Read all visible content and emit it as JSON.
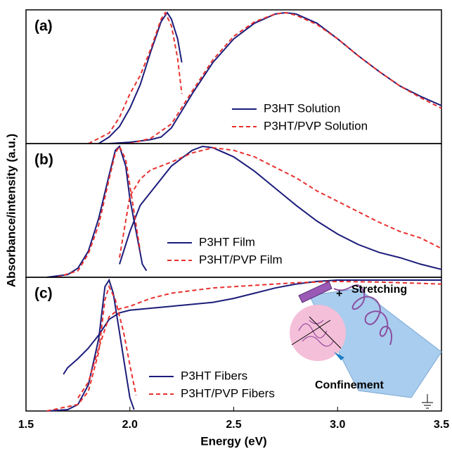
{
  "chart_data": [
    {
      "type": "line",
      "title": "(a)",
      "xlim": [
        1.5,
        3.5
      ],
      "ylim": [
        0,
        1
      ],
      "legend": "lower right",
      "series": [
        {
          "name": "P3HT Solution",
          "color": "#1c1c7a",
          "style": "solid",
          "x": [
            1.85,
            1.9,
            1.95,
            2.0,
            2.05,
            2.1,
            2.15,
            2.18,
            2.2,
            2.23,
            2.25,
            null,
            1.9,
            2.0,
            2.1,
            2.15,
            2.2,
            2.3,
            2.4,
            2.5,
            2.6,
            2.7,
            2.75,
            2.8,
            2.9,
            3.0,
            3.1,
            3.2,
            3.3,
            3.4,
            3.5
          ],
          "values": [
            0,
            0.05,
            0.13,
            0.27,
            0.45,
            0.7,
            0.93,
            1.0,
            0.95,
            0.8,
            0.62,
            null,
            0,
            0.01,
            0.03,
            0.05,
            0.12,
            0.38,
            0.62,
            0.8,
            0.92,
            0.99,
            1.0,
            0.99,
            0.92,
            0.8,
            0.67,
            0.55,
            0.44,
            0.36,
            0.29
          ]
        },
        {
          "name": "P3HT/PVP Solution",
          "color": "#e8312f",
          "style": "dashed",
          "x": [
            1.8,
            1.9,
            1.95,
            2.0,
            2.05,
            2.1,
            2.15,
            2.17,
            2.2,
            2.23,
            2.25,
            null,
            2.0,
            2.1,
            2.2,
            2.3,
            2.4,
            2.5,
            2.6,
            2.7,
            2.75,
            2.8,
            2.9,
            3.0,
            3.1,
            3.2,
            3.3,
            3.4,
            3.5
          ],
          "values": [
            0,
            0.08,
            0.2,
            0.38,
            0.52,
            0.72,
            0.95,
            1.0,
            0.9,
            0.65,
            0.38,
            null,
            0,
            0.04,
            0.15,
            0.4,
            0.64,
            0.82,
            0.93,
            0.99,
            1.0,
            0.98,
            0.91,
            0.8,
            0.67,
            0.55,
            0.44,
            0.35,
            0.27
          ]
        }
      ]
    },
    {
      "type": "line",
      "title": "(b)",
      "xlim": [
        1.5,
        3.5
      ],
      "ylim": [
        0,
        1
      ],
      "legend": "lower center",
      "ylabel": "Absorbance/intensity (a.u.)",
      "series": [
        {
          "name": "P3HT Film",
          "color": "#1c1c7a",
          "style": "solid",
          "x": [
            1.6,
            1.7,
            1.75,
            1.8,
            1.85,
            1.9,
            1.93,
            1.95,
            1.98,
            2.0,
            2.03,
            2.06,
            2.08,
            null,
            1.95,
            2.0,
            2.05,
            2.1,
            2.2,
            2.3,
            2.35,
            2.4,
            2.5,
            2.6,
            2.7,
            2.8,
            2.9,
            3.0,
            3.1,
            3.2,
            3.3,
            3.4,
            3.5
          ],
          "values": [
            0,
            0.02,
            0.07,
            0.2,
            0.45,
            0.78,
            0.97,
            1.0,
            0.85,
            0.6,
            0.35,
            0.1,
            0.05,
            null,
            0.1,
            0.35,
            0.55,
            0.65,
            0.85,
            0.97,
            1.0,
            0.99,
            0.92,
            0.81,
            0.68,
            0.55,
            0.43,
            0.33,
            0.25,
            0.19,
            0.15,
            0.1,
            0.06
          ]
        },
        {
          "name": "P3HT/PVP Film",
          "color": "#e8312f",
          "style": "dashed",
          "x": [
            1.65,
            1.75,
            1.8,
            1.85,
            1.9,
            1.93,
            1.95,
            1.98,
            2.0,
            2.03,
            2.05,
            null,
            1.95,
            2.0,
            2.05,
            2.1,
            2.2,
            2.3,
            2.4,
            2.5,
            2.6,
            2.7,
            2.8,
            2.9,
            3.0,
            3.1,
            3.2,
            3.3,
            3.4,
            3.5
          ],
          "values": [
            0,
            0.05,
            0.18,
            0.4,
            0.75,
            0.95,
            1.0,
            0.9,
            0.7,
            0.4,
            0.2,
            null,
            0.15,
            0.62,
            0.75,
            0.82,
            0.88,
            0.95,
            0.99,
            0.97,
            0.92,
            0.84,
            0.76,
            0.66,
            0.58,
            0.5,
            0.42,
            0.35,
            0.3,
            0.22
          ]
        }
      ]
    },
    {
      "type": "line",
      "title": "(c)",
      "xlim": [
        1.5,
        3.5
      ],
      "ylim": [
        0,
        1
      ],
      "legend": "lower center",
      "xlabel": "Energy (eV)",
      "xticks": [
        1.5,
        {
          "value": 2,
          "label": "2.0"
        },
        2.5,
        {
          "value": 3,
          "label": "3.0"
        },
        3.5
      ],
      "annotations": [
        "+",
        "Stretching",
        "Confinement"
      ],
      "series": [
        {
          "name": "P3HT Fibers",
          "color": "#1c1c7a",
          "style": "solid",
          "x": [
            1.6,
            1.7,
            1.75,
            1.8,
            1.85,
            1.88,
            1.9,
            1.92,
            1.95,
            1.98,
            2.0,
            2.02,
            null,
            1.68,
            1.7,
            1.75,
            1.8,
            1.85,
            1.9,
            1.95,
            2.0,
            2.2,
            2.4,
            2.5,
            2.6,
            2.7,
            2.8,
            2.9,
            3.0,
            3.2,
            3.5
          ],
          "values": [
            0,
            0.01,
            0.05,
            0.2,
            0.55,
            0.95,
            1.0,
            0.9,
            0.6,
            0.3,
            0.1,
            0.01,
            null,
            0.28,
            0.33,
            0.4,
            0.48,
            0.58,
            0.7,
            0.75,
            0.77,
            0.8,
            0.83,
            0.86,
            0.9,
            0.94,
            0.97,
            0.99,
            1.0,
            1.0,
            1.0
          ]
        },
        {
          "name": "P3HT/PVP Fibers",
          "color": "#e8312f",
          "style": "dashed",
          "x": [
            1.6,
            1.75,
            1.8,
            1.85,
            1.88,
            1.9,
            1.93,
            1.97,
            2.0,
            2.03,
            null,
            1.75,
            1.8,
            1.85,
            1.9,
            1.95,
            2.0,
            2.1,
            2.2,
            2.4,
            2.6,
            2.8,
            3.0,
            3.2,
            3.5
          ],
          "values": [
            0,
            0.05,
            0.15,
            0.45,
            0.85,
            0.95,
            0.85,
            0.6,
            0.35,
            0.12,
            null,
            0.1,
            0.22,
            0.48,
            0.72,
            0.78,
            0.8,
            0.86,
            0.9,
            0.94,
            0.96,
            0.98,
            0.99,
            0.985,
            0.97
          ]
        }
      ]
    }
  ]
}
